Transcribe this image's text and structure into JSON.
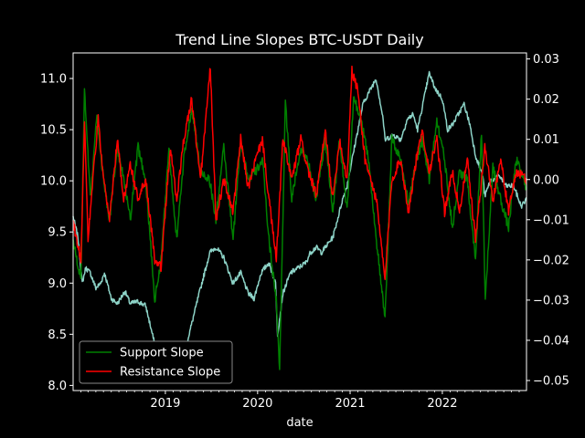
{
  "chart_data": {
    "type": "line",
    "title": "Trend Line Slopes BTC-USDT Daily",
    "xlabel": "date",
    "ylabel": "",
    "ylabel_right": "",
    "x_range": [
      "2018-01-01",
      "2022-11-30"
    ],
    "x_ticks": [
      {
        "date": "2019-01-01",
        "label": "2019"
      },
      {
        "date": "2020-01-01",
        "label": "2020"
      },
      {
        "date": "2021-01-01",
        "label": "2021"
      },
      {
        "date": "2022-01-01",
        "label": "2022"
      }
    ],
    "ylim_left": [
      7.95,
      11.25
    ],
    "yticks_left": [
      "8.0",
      "8.5",
      "9.0",
      "9.5",
      "10.0",
      "10.5",
      "11.0"
    ],
    "ylim_right": [
      -0.0525,
      0.0315
    ],
    "yticks_right": [
      "−0.05",
      "−0.04",
      "−0.03",
      "−0.02",
      "−0.01",
      "0.00",
      "0.01",
      "0.02",
      "0.03"
    ],
    "grid": false,
    "legend": {
      "placement": "lower-left",
      "entries": [
        "Support Slope",
        "Resistance Slope"
      ]
    },
    "series": [
      {
        "axis": "left",
        "color": "#8dd3c7",
        "dates": [
          "2018-01-01",
          "2018-01-20",
          "2018-02-06",
          "2018-02-20",
          "2018-03-10",
          "2018-04-01",
          "2018-04-20",
          "2018-05-05",
          "2018-06-01",
          "2018-06-25",
          "2018-07-25",
          "2018-08-15",
          "2018-09-15",
          "2018-10-15",
          "2018-11-20",
          "2018-12-15",
          "2019-01-15",
          "2019-02-15",
          "2019-03-15",
          "2019-04-10",
          "2019-05-15",
          "2019-06-26",
          "2019-07-20",
          "2019-08-20",
          "2019-09-25",
          "2019-10-26",
          "2019-11-25",
          "2019-12-18",
          "2020-01-15",
          "2020-02-14",
          "2020-03-12",
          "2020-03-20",
          "2020-04-10",
          "2020-05-10",
          "2020-06-10",
          "2020-07-10",
          "2020-07-28",
          "2020-08-20",
          "2020-09-10",
          "2020-10-10",
          "2020-10-25",
          "2020-11-10",
          "2020-11-30",
          "2020-12-20",
          "2021-01-08",
          "2021-02-01",
          "2021-02-21",
          "2021-03-13",
          "2021-04-14",
          "2021-05-12",
          "2021-05-19",
          "2021-06-22",
          "2021-07-20",
          "2021-08-15",
          "2021-09-07",
          "2021-09-25",
          "2021-10-20",
          "2021-11-10",
          "2021-12-04",
          "2022-01-01",
          "2022-01-22",
          "2022-02-10",
          "2022-03-28",
          "2022-04-20",
          "2022-05-12",
          "2022-06-10",
          "2022-06-18",
          "2022-07-10",
          "2022-08-15",
          "2022-09-10",
          "2022-10-10",
          "2022-11-09",
          "2022-11-30"
        ],
        "values": [
          9.65,
          9.45,
          9.0,
          9.15,
          9.1,
          8.95,
          9.0,
          9.1,
          8.85,
          8.8,
          8.92,
          8.8,
          8.82,
          8.78,
          8.4,
          8.22,
          8.25,
          8.2,
          8.3,
          8.55,
          8.9,
          9.3,
          9.35,
          9.25,
          9.0,
          9.1,
          8.9,
          8.85,
          9.1,
          9.2,
          9.0,
          8.5,
          8.9,
          9.1,
          9.15,
          9.2,
          9.3,
          9.35,
          9.3,
          9.4,
          9.45,
          9.6,
          9.8,
          9.95,
          10.2,
          10.5,
          10.75,
          10.85,
          11.0,
          10.6,
          10.4,
          10.45,
          10.4,
          10.6,
          10.65,
          10.5,
          10.8,
          11.05,
          10.9,
          10.8,
          10.5,
          10.55,
          10.75,
          10.55,
          10.25,
          10.05,
          9.85,
          10.0,
          10.05,
          9.95,
          9.95,
          9.75,
          9.82
        ]
      },
      {
        "name": "Support Slope",
        "axis": "right",
        "color": "#008000",
        "dates": [
          "2018-01-01",
          "2018-01-15",
          "2018-02-01",
          "2018-02-15",
          "2018-03-10",
          "2018-04-05",
          "2018-05-01",
          "2018-05-25",
          "2018-06-25",
          "2018-07-20",
          "2018-08-15",
          "2018-09-15",
          "2018-10-15",
          "2018-11-20",
          "2018-12-15",
          "2019-01-15",
          "2019-02-15",
          "2019-03-15",
          "2019-04-15",
          "2019-05-20",
          "2019-06-25",
          "2019-07-20",
          "2019-08-20",
          "2019-09-26",
          "2019-10-26",
          "2019-11-25",
          "2019-12-25",
          "2020-01-20",
          "2020-02-15",
          "2020-03-15",
          "2020-03-28",
          "2020-04-20",
          "2020-05-15",
          "2020-06-20",
          "2020-07-20",
          "2020-08-20",
          "2020-09-25",
          "2020-10-25",
          "2020-11-20",
          "2020-12-20",
          "2021-01-15",
          "2021-02-15",
          "2021-03-15",
          "2021-04-15",
          "2021-05-19",
          "2021-06-15",
          "2021-07-20",
          "2021-08-20",
          "2021-09-20",
          "2021-10-15",
          "2021-11-10",
          "2021-12-10",
          "2022-01-10",
          "2022-02-10",
          "2022-03-10",
          "2022-04-10",
          "2022-05-12",
          "2022-06-05",
          "2022-06-20",
          "2022-07-20",
          "2022-08-20",
          "2022-09-20",
          "2022-10-20",
          "2022-11-30"
        ],
        "values": [
          -0.015,
          -0.02,
          -0.025,
          0.022,
          -0.005,
          0.016,
          0.0,
          -0.01,
          0.008,
          0.0,
          -0.01,
          0.008,
          0.0,
          -0.03,
          -0.02,
          0.008,
          -0.015,
          0.005,
          0.018,
          0.002,
          0.0,
          -0.01,
          0.008,
          -0.015,
          0.01,
          0.0,
          0.002,
          0.005,
          -0.015,
          -0.03,
          -0.048,
          0.02,
          -0.005,
          0.008,
          0.004,
          -0.005,
          0.01,
          -0.008,
          0.01,
          -0.008,
          0.02,
          0.015,
          0.005,
          -0.015,
          -0.035,
          0.01,
          0.005,
          -0.006,
          0.005,
          0.01,
          0.0,
          0.015,
          0.005,
          -0.012,
          0.002,
          0.0,
          -0.02,
          0.012,
          -0.03,
          0.003,
          -0.005,
          -0.012,
          0.005,
          -0.002
        ]
      },
      {
        "name": "Resistance Slope",
        "axis": "right",
        "color": "#ff0000",
        "dates": [
          "2018-01-01",
          "2018-01-15",
          "2018-02-01",
          "2018-02-15",
          "2018-03-01",
          "2018-03-20",
          "2018-04-10",
          "2018-05-01",
          "2018-05-25",
          "2018-06-25",
          "2018-07-20",
          "2018-08-15",
          "2018-09-15",
          "2018-10-15",
          "2018-11-20",
          "2018-12-15",
          "2019-01-20",
          "2019-02-15",
          "2019-03-15",
          "2019-04-15",
          "2019-05-20",
          "2019-06-28",
          "2019-07-20",
          "2019-08-20",
          "2019-09-26",
          "2019-10-26",
          "2019-11-25",
          "2019-12-25",
          "2020-01-20",
          "2020-02-15",
          "2020-03-15",
          "2020-04-10",
          "2020-05-15",
          "2020-06-20",
          "2020-07-20",
          "2020-08-20",
          "2020-09-25",
          "2020-10-25",
          "2020-11-20",
          "2020-12-20",
          "2021-01-08",
          "2021-02-01",
          "2021-03-01",
          "2021-04-15",
          "2021-05-19",
          "2021-06-15",
          "2021-07-20",
          "2021-08-20",
          "2021-09-20",
          "2021-10-15",
          "2021-11-10",
          "2021-12-10",
          "2022-01-10",
          "2022-02-10",
          "2022-03-10",
          "2022-04-10",
          "2022-05-12",
          "2022-06-18",
          "2022-07-20",
          "2022-08-20",
          "2022-09-20",
          "2022-10-20",
          "2022-11-30"
        ],
        "values": [
          -0.01,
          -0.015,
          -0.02,
          0.015,
          -0.015,
          0.0,
          0.015,
          0.0,
          -0.01,
          0.01,
          -0.005,
          0.004,
          -0.005,
          0.0,
          -0.02,
          -0.022,
          0.008,
          -0.005,
          0.01,
          0.02,
          0.0,
          0.028,
          -0.01,
          0.0,
          -0.008,
          0.01,
          -0.002,
          0.005,
          0.01,
          -0.005,
          -0.02,
          0.01,
          0.0,
          0.01,
          0.002,
          -0.004,
          0.012,
          -0.005,
          0.01,
          0.0,
          0.027,
          0.022,
          0.005,
          -0.005,
          -0.025,
          0.0,
          0.005,
          -0.008,
          0.005,
          0.012,
          0.002,
          0.01,
          -0.008,
          0.002,
          -0.008,
          0.005,
          -0.015,
          0.008,
          -0.005,
          0.005,
          -0.008,
          0.002,
          0.0
        ]
      }
    ]
  }
}
